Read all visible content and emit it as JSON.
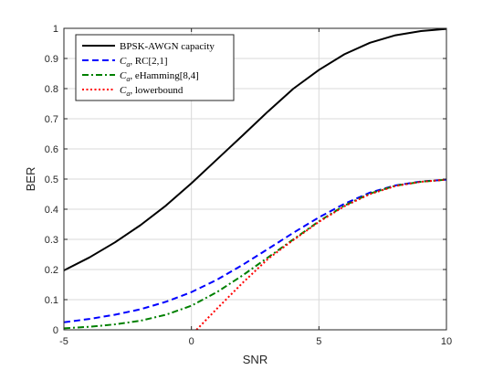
{
  "chart_data": {
    "type": "line",
    "xlabel": "SNR",
    "ylabel": "BER",
    "xlim": [
      -5,
      10
    ],
    "ylim": [
      0,
      1
    ],
    "xticks": [
      -5,
      0,
      5,
      10
    ],
    "yticks": [
      0,
      0.1,
      0.2,
      0.3,
      0.4,
      0.5,
      0.6,
      0.7,
      0.8,
      0.9,
      1
    ],
    "xtick_labels": [
      "-5",
      "0",
      "5",
      "10"
    ],
    "ytick_labels": [
      "0",
      "0.1",
      "0.2",
      "0.3",
      "0.4",
      "0.5",
      "0.6",
      "0.7",
      "0.8",
      "0.9",
      "1"
    ],
    "grid": true,
    "legend_position": "top-left",
    "series": [
      {
        "name": "BPSK-AWGN capacity",
        "legend_main": "BPSK-AWGN capacity",
        "legend_sub": "",
        "legend_rest": "",
        "color": "#000000",
        "style": "solid",
        "x": [
          -5,
          -4,
          -3,
          -2,
          -1,
          0,
          1,
          2,
          3,
          4,
          5,
          6,
          7,
          8,
          9,
          10
        ],
        "y": [
          0.197,
          0.24,
          0.29,
          0.347,
          0.412,
          0.486,
          0.565,
          0.644,
          0.724,
          0.8,
          0.862,
          0.914,
          0.952,
          0.977,
          0.991,
          0.998
        ]
      },
      {
        "name": "C_a, RC[2,1]",
        "legend_main": "C",
        "legend_sub": "a",
        "legend_rest": ", RC[2,1]",
        "color": "#0000ff",
        "style": "dashed",
        "x": [
          -5,
          -4,
          -3,
          -2,
          -1,
          0,
          1,
          2,
          3,
          4,
          5,
          6,
          7,
          8,
          9,
          10
        ],
        "y": [
          0.025,
          0.036,
          0.05,
          0.068,
          0.093,
          0.125,
          0.166,
          0.215,
          0.268,
          0.322,
          0.373,
          0.418,
          0.455,
          0.479,
          0.492,
          0.498
        ]
      },
      {
        "name": "C_a, eHamming[8,4]",
        "legend_main": "C",
        "legend_sub": "a",
        "legend_rest": ", eHamming[8,4]",
        "color": "#008000",
        "style": "dashdot",
        "x": [
          -5,
          -4,
          -3,
          -2,
          -1,
          0,
          1,
          2,
          3,
          4,
          5,
          6,
          7,
          8,
          9,
          10
        ],
        "y": [
          0.005,
          0.01,
          0.018,
          0.03,
          0.05,
          0.08,
          0.125,
          0.18,
          0.24,
          0.3,
          0.36,
          0.412,
          0.452,
          0.478,
          0.491,
          0.498
        ]
      },
      {
        "name": "C_a, lowerbound",
        "legend_main": "C",
        "legend_sub": "a",
        "legend_rest": ", lowerbound",
        "color": "#ff0000",
        "style": "dotted",
        "x": [
          0.2,
          1,
          2,
          3,
          4,
          5,
          6,
          7,
          8,
          9,
          10
        ],
        "y": [
          0,
          0.07,
          0.155,
          0.235,
          0.298,
          0.358,
          0.41,
          0.45,
          0.477,
          0.491,
          0.498
        ]
      }
    ]
  }
}
